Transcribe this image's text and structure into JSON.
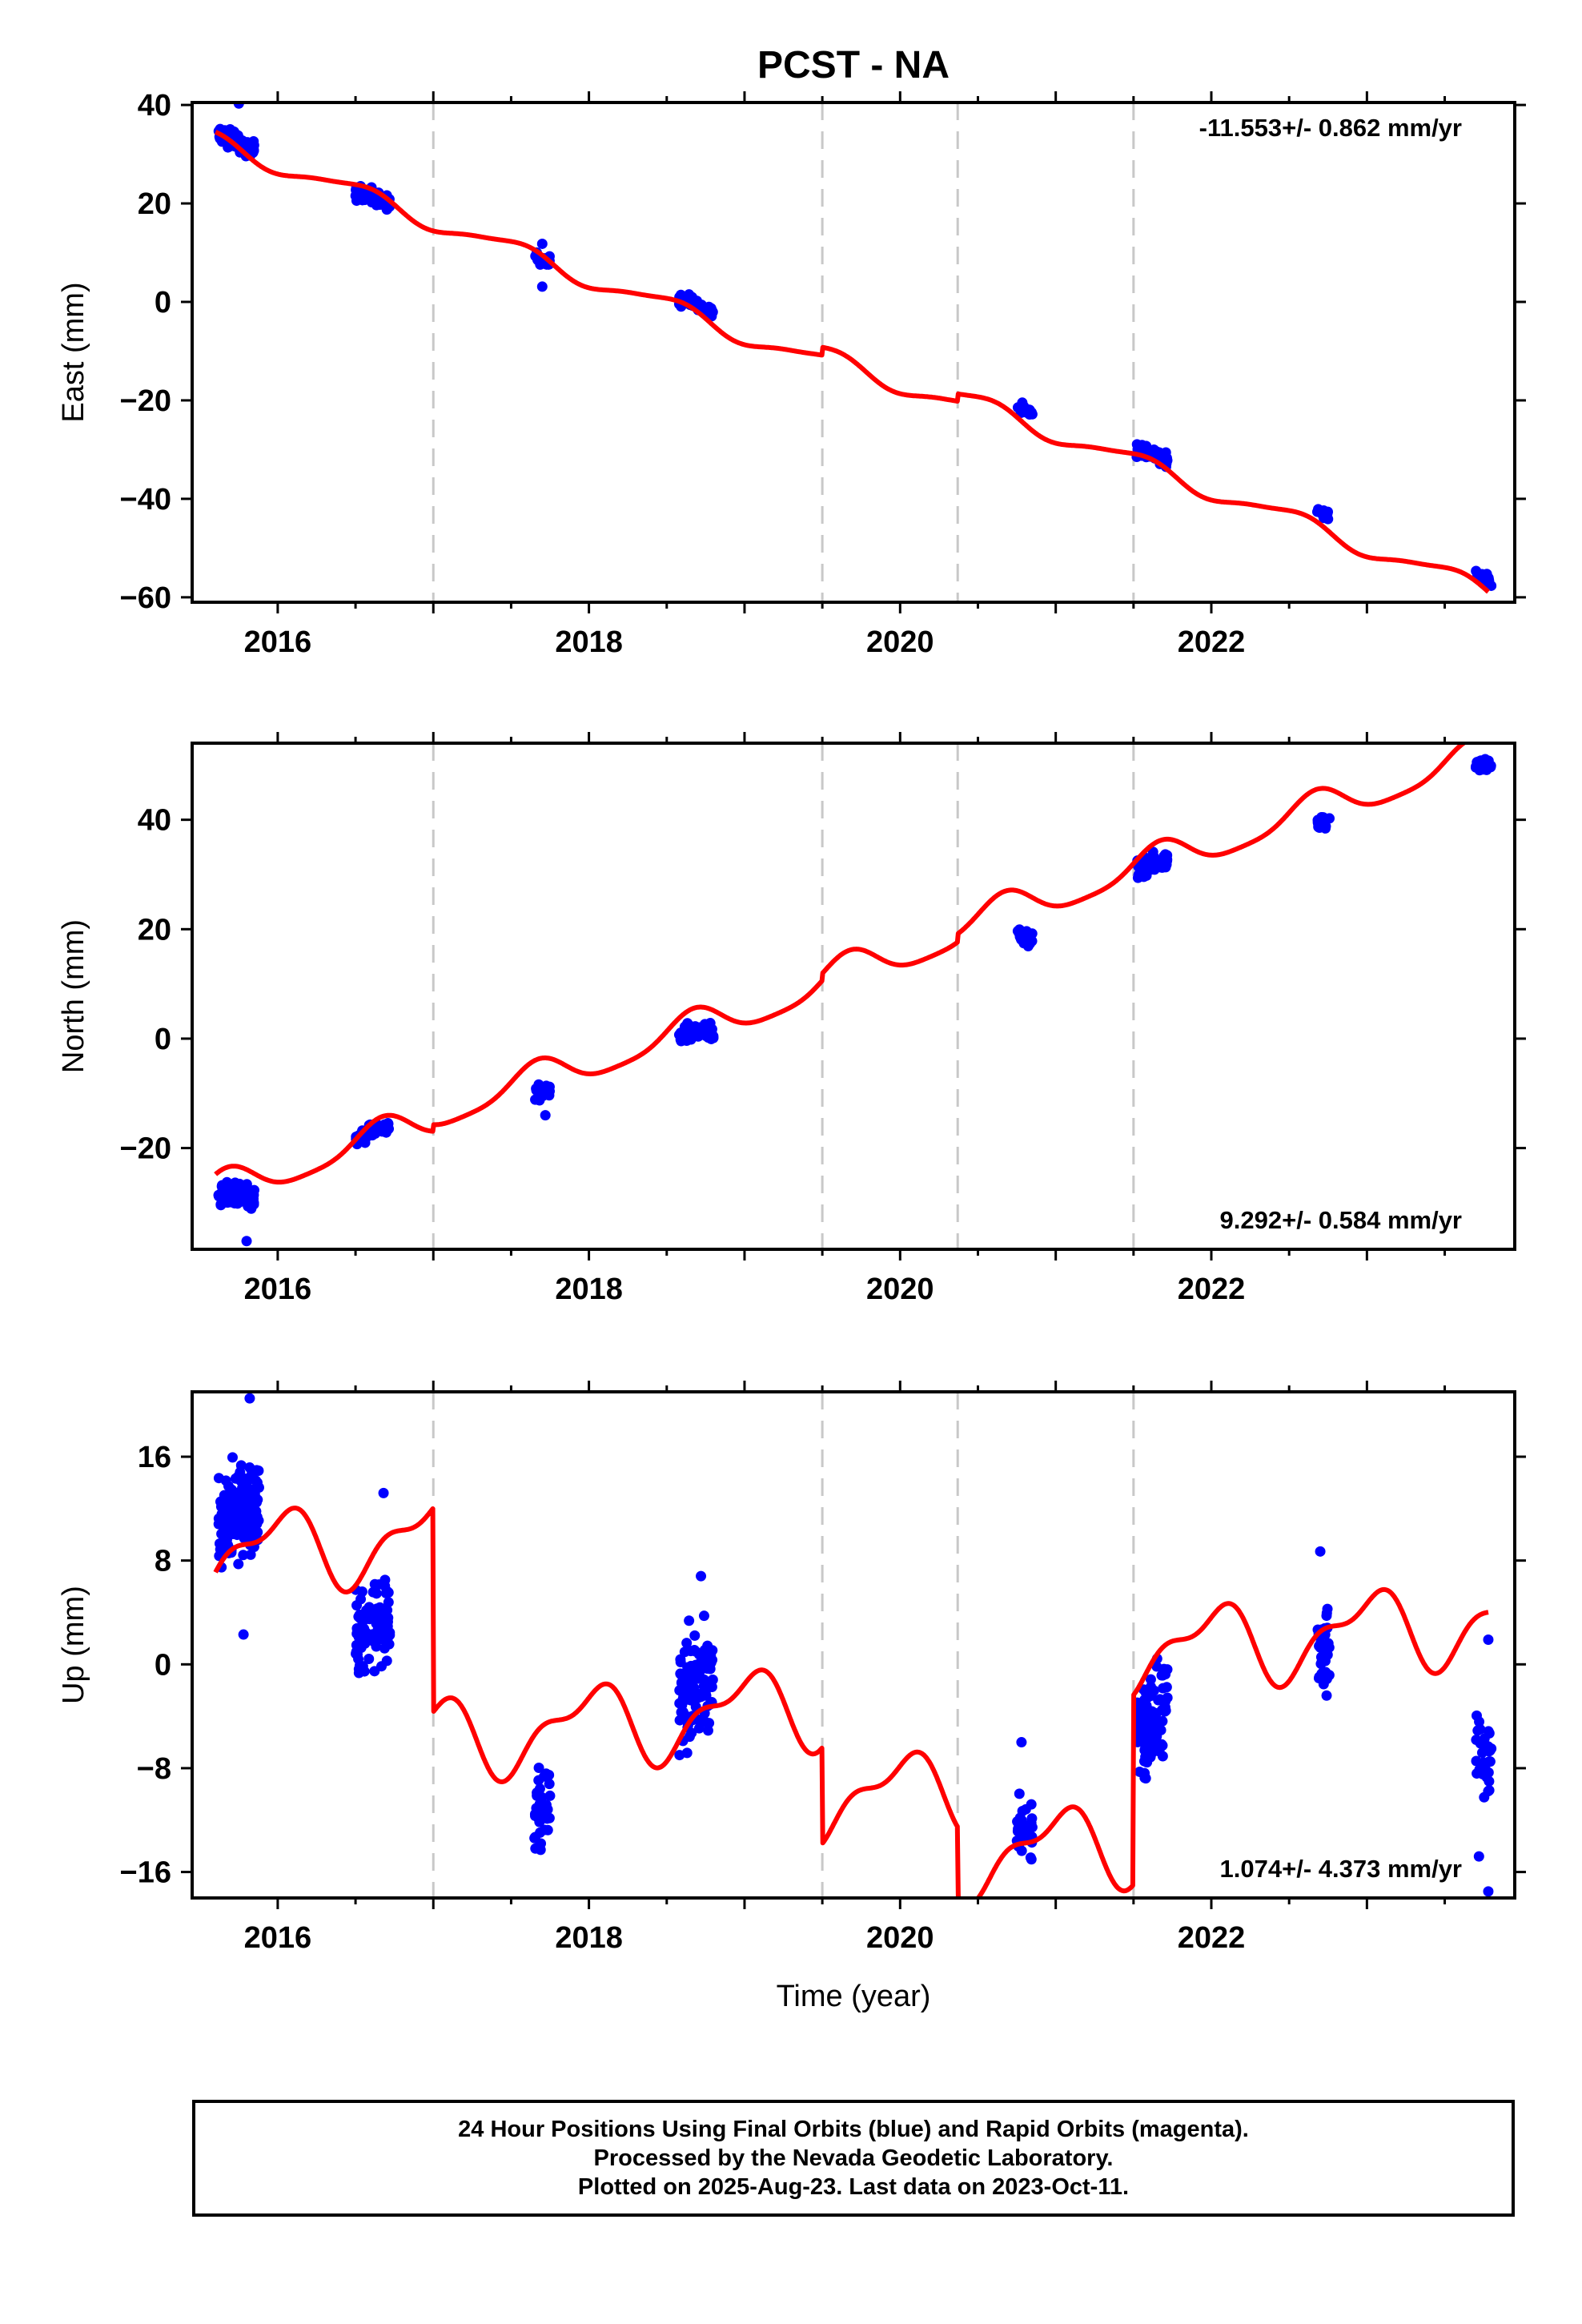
{
  "title": "PCST - NA",
  "xlabel": "Time (year)",
  "x_ticks": [
    "2016",
    "2018",
    "2020",
    "2022"
  ],
  "footer": {
    "line1": "24 Hour Positions Using Final Orbits (blue) and Rapid Orbits (magenta).",
    "line2": "Processed by the Nevada Geodetic Laboratory.",
    "line3": "Plotted on 2025-Aug-23. Last data on 2023-Oct-11."
  },
  "colors": {
    "data": "#0000ff",
    "model": "#ff0000",
    "steps": "#c8c8c8",
    "frame": "#000000"
  },
  "chart_data": [
    {
      "type": "scatter",
      "panel": "east",
      "ylabel": "East (mm)",
      "rate_label": "-11.553+/- 0.862 mm/yr",
      "rate_position": "top-right",
      "xlim": [
        2015.45,
        2023.95
      ],
      "ylim": [
        -61,
        40.5
      ],
      "yticks": [
        40,
        20,
        0,
        -20,
        -40,
        -60
      ],
      "step_epochs": [
        2017.0,
        2019.5,
        2020.37,
        2021.5
      ],
      "data_clusters": [
        {
          "x0": 2015.62,
          "x1": 2015.85,
          "mean": 32.5,
          "spread": 1.4,
          "n": 110,
          "outliers": [
            [
              2015.75,
              40.3
            ]
          ]
        },
        {
          "x0": 2016.5,
          "x1": 2016.72,
          "mean": 21.5,
          "spread": 1.2,
          "n": 70
        },
        {
          "x0": 2017.65,
          "x1": 2017.75,
          "mean": 8.5,
          "spread": 1.2,
          "n": 20,
          "outliers": [
            [
              2017.7,
              3.1
            ],
            [
              2017.7,
              11.8
            ]
          ]
        },
        {
          "x0": 2018.58,
          "x1": 2018.8,
          "mean": -0.5,
          "spread": 1.1,
          "n": 70
        },
        {
          "x0": 2020.75,
          "x1": 2020.85,
          "mean": -22.0,
          "spread": 0.8,
          "n": 20
        },
        {
          "x0": 2021.52,
          "x1": 2021.72,
          "mean": -30.7,
          "spread": 1.1,
          "n": 70
        },
        {
          "x0": 2022.68,
          "x1": 2022.76,
          "mean": -43.0,
          "spread": 0.9,
          "n": 20
        },
        {
          "x0": 2023.7,
          "x1": 2023.8,
          "mean": -56.0,
          "spread": 1.0,
          "n": 25
        }
      ],
      "model": {
        "x_start": 2015.6,
        "x_end": 2023.78,
        "t0": 2015.6,
        "offset": 32.6,
        "rate": -11.553,
        "annual_sin": -0.9,
        "annual_cos": 1.6,
        "semi_sin": 0.3,
        "semi_cos": 0.3,
        "steps": [
          [
            2019.5,
            1.6
          ],
          [
            2020.37,
            1.5
          ],
          [
            2021.5,
            0.0
          ]
        ]
      }
    },
    {
      "type": "scatter",
      "panel": "north",
      "ylabel": "North (mm)",
      "rate_label": "9.292+/- 0.584 mm/yr",
      "rate_position": "bottom-right",
      "xlim": [
        2015.45,
        2023.95
      ],
      "ylim": [
        -38.5,
        54
      ],
      "yticks": [
        40,
        20,
        0,
        -20
      ],
      "step_epochs": [
        2017.0,
        2019.5,
        2020.37,
        2021.5
      ],
      "data_clusters": [
        {
          "x0": 2015.62,
          "x1": 2015.85,
          "mean": -28.5,
          "spread": 1.6,
          "n": 110,
          "outliers": [
            [
              2015.8,
              -37.0
            ]
          ]
        },
        {
          "x0": 2016.5,
          "x1": 2016.72,
          "mean": -17.0,
          "spread": 1.0,
          "n": 70
        },
        {
          "x0": 2017.65,
          "x1": 2017.75,
          "mean": -9.5,
          "spread": 1.5,
          "n": 20,
          "outliers": [
            [
              2017.72,
              -14.0
            ]
          ]
        },
        {
          "x0": 2018.58,
          "x1": 2018.8,
          "mean": 1.5,
          "spread": 1.3,
          "n": 70
        },
        {
          "x0": 2020.75,
          "x1": 2020.85,
          "mean": 18.5,
          "spread": 1.0,
          "n": 20
        },
        {
          "x0": 2021.52,
          "x1": 2021.72,
          "mean": 32.0,
          "spread": 1.4,
          "n": 70
        },
        {
          "x0": 2022.68,
          "x1": 2022.76,
          "mean": 39.5,
          "spread": 0.9,
          "n": 20
        },
        {
          "x0": 2023.7,
          "x1": 2023.8,
          "mean": 50.0,
          "spread": 0.9,
          "n": 25
        }
      ],
      "model": {
        "x_start": 2015.6,
        "x_end": 2023.78,
        "t0": 2015.6,
        "offset": -27.9,
        "rate": 9.292,
        "annual_sin": 1.2,
        "annual_cos": 2.8,
        "semi_sin": 0.6,
        "semi_cos": 0.3,
        "steps": [
          [
            2017.0,
            1.2
          ],
          [
            2019.5,
            1.3
          ],
          [
            2020.37,
            1.5
          ],
          [
            2021.5,
            0.0
          ]
        ]
      }
    },
    {
      "type": "scatter",
      "panel": "up",
      "ylabel": "Up (mm)",
      "rate_label": "1.074+/- 4.373 mm/yr",
      "rate_position": "bottom-right",
      "xlim": [
        2015.45,
        2023.95
      ],
      "ylim": [
        -18,
        21
      ],
      "yticks": [
        16,
        8,
        0,
        -8,
        -16
      ],
      "step_epochs": [
        2017.0,
        2019.5,
        2020.37,
        2021.5
      ],
      "data_clusters": [
        {
          "x0": 2015.62,
          "x1": 2015.88,
          "mean": 12.0,
          "spread": 3.0,
          "n": 150,
          "outliers": [
            [
              2015.78,
              2.3
            ],
            [
              2015.82,
              20.5
            ]
          ]
        },
        {
          "x0": 2016.5,
          "x1": 2016.72,
          "mean": 3.0,
          "spread": 3.0,
          "n": 100,
          "outliers": [
            [
              2016.68,
              13.2
            ]
          ]
        },
        {
          "x0": 2017.65,
          "x1": 2017.75,
          "mean": -11.0,
          "spread": 3.0,
          "n": 45
        },
        {
          "x0": 2018.58,
          "x1": 2018.8,
          "mean": -1.5,
          "spread": 3.0,
          "n": 110,
          "outliers": [
            [
              2018.72,
              6.8
            ]
          ]
        },
        {
          "x0": 2020.75,
          "x1": 2020.85,
          "mean": -13.0,
          "spread": 2.0,
          "n": 30,
          "outliers": [
            [
              2020.78,
              -6.0
            ]
          ]
        },
        {
          "x0": 2021.52,
          "x1": 2021.72,
          "mean": -4.0,
          "spread": 2.8,
          "n": 110
        },
        {
          "x0": 2022.68,
          "x1": 2022.76,
          "mean": 1.5,
          "spread": 2.8,
          "n": 35,
          "outliers": [
            [
              2022.7,
              8.7
            ]
          ]
        },
        {
          "x0": 2023.7,
          "x1": 2023.8,
          "mean": -7.0,
          "spread": 2.8,
          "n": 30,
          "outliers": [
            [
              2023.72,
              -14.8
            ],
            [
              2023.78,
              -17.5
            ],
            [
              2023.78,
              1.9
            ]
          ]
        }
      ],
      "model": {
        "x_start": 2015.6,
        "x_end": 2023.78,
        "t0": 2015.6,
        "offset": 8.4,
        "rate": 1.074,
        "annual_sin": 1.6,
        "annual_cos": -2.2,
        "semi_sin": 0.9,
        "semi_cos": 0.9,
        "steps": [
          [
            2017.0,
            -15.7
          ],
          [
            2019.5,
            -7.4
          ],
          [
            2020.37,
            -5.3
          ],
          [
            2021.5,
            14.6
          ]
        ]
      }
    }
  ]
}
